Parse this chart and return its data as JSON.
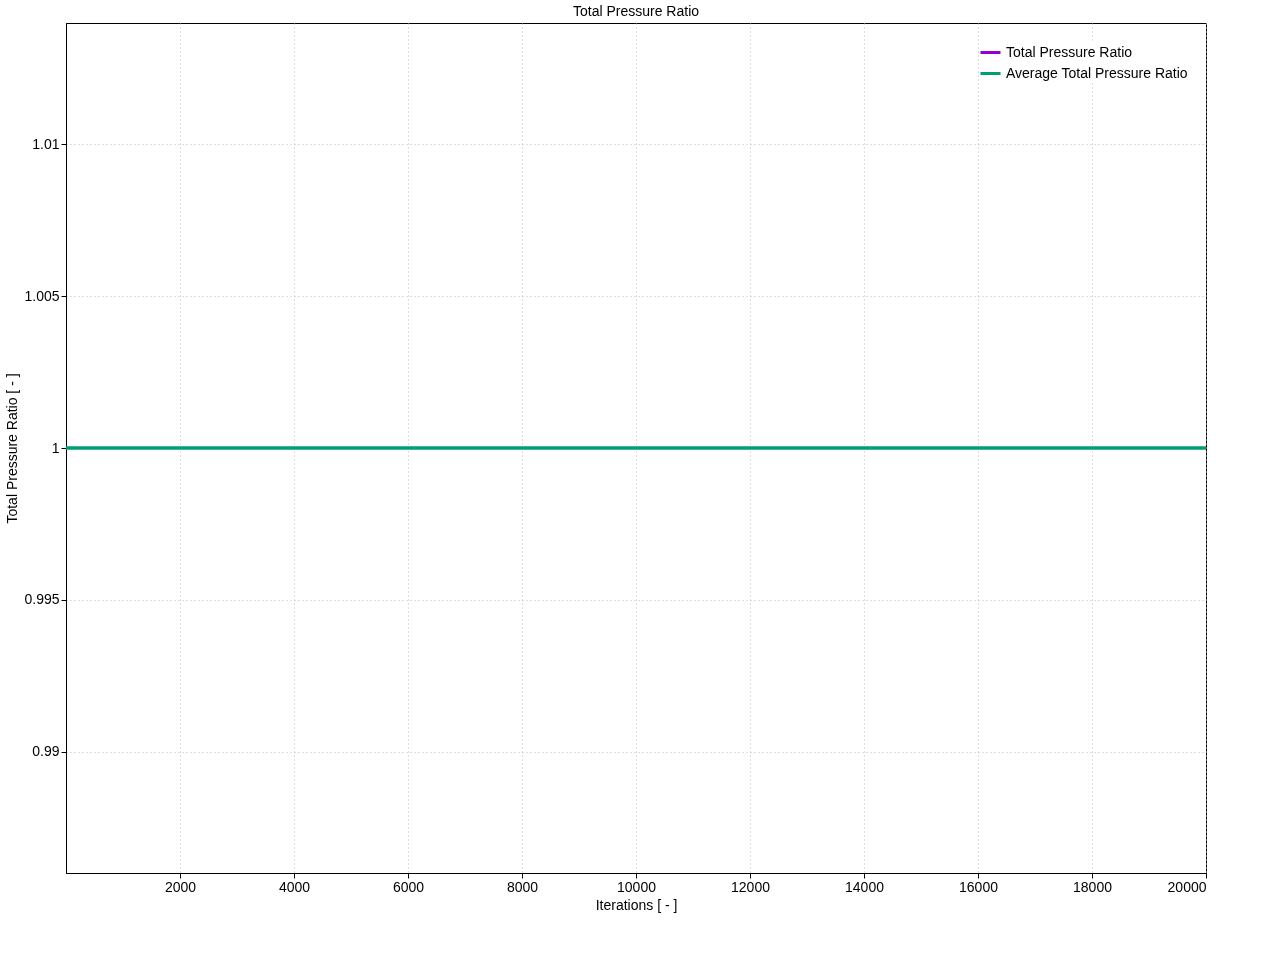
{
  "chart_data": {
    "type": "line",
    "title": "Total Pressure Ratio",
    "xlabel": "Iterations [ - ]",
    "ylabel": "Total Pressure Ratio [ - ]",
    "x": [
      0,
      20000
    ],
    "series": [
      {
        "name": "Total Pressure Ratio",
        "color": "#9400d3",
        "values": [
          null,
          null
        ]
      },
      {
        "name": "Average Total Pressure Ratio",
        "color": "#009e73",
        "values": [
          1,
          1
        ]
      }
    ],
    "xlim": [
      0,
      20000
    ],
    "xticks": [
      2000,
      4000,
      6000,
      8000,
      10000,
      12000,
      14000,
      16000,
      18000,
      20000
    ],
    "ylim": [
      0.986,
      1.014
    ],
    "yticks": [
      0.99,
      0.995,
      1,
      1.005,
      1.01
    ],
    "grid": true,
    "legend": "top right",
    "marker": "none",
    "line_style": "solid"
  }
}
